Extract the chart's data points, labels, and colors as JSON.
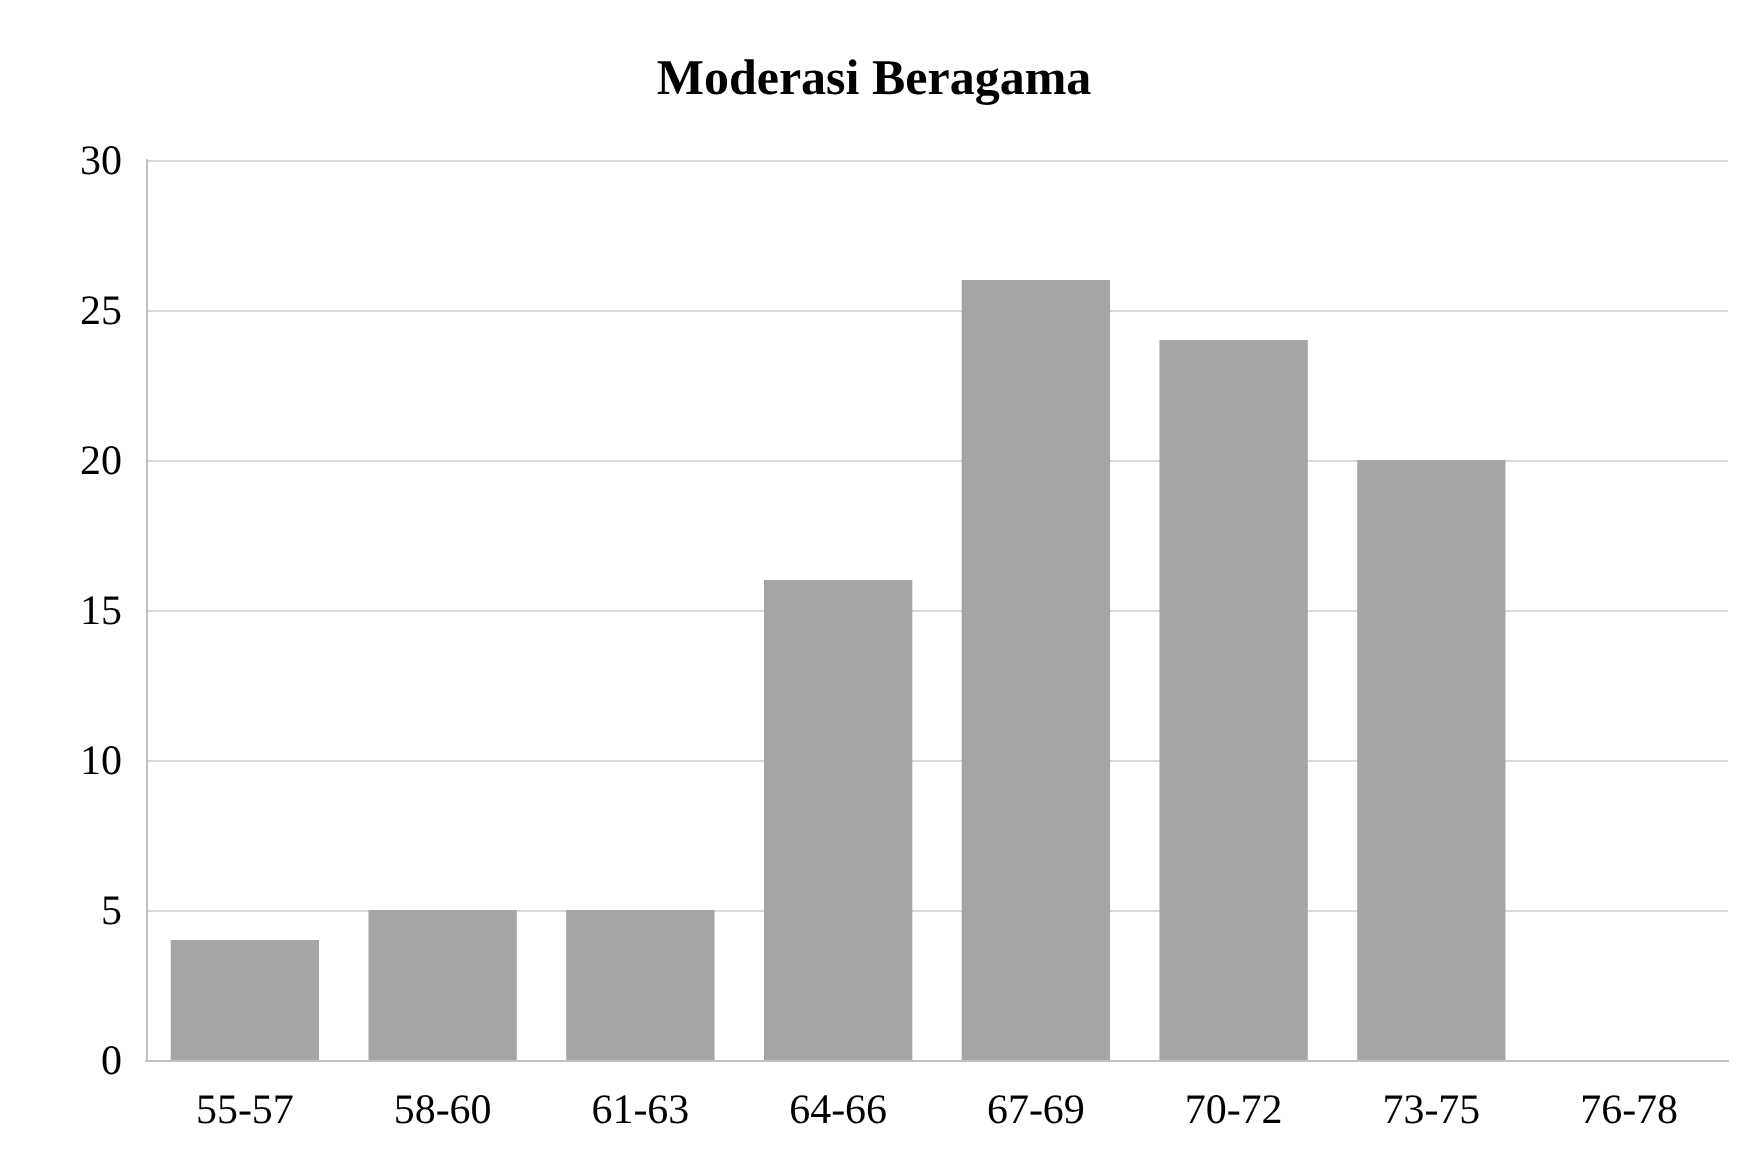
{
  "chart_data": {
    "type": "bar",
    "title": "Moderasi Beragama",
    "categories": [
      "55-57",
      "58-60",
      "61-63",
      "64-66",
      "67-69",
      "70-72",
      "73-75",
      "76-78"
    ],
    "values": [
      4,
      5,
      5,
      16,
      26,
      24,
      20,
      0
    ],
    "color": "#a5a5a5",
    "ylim": [
      0,
      30
    ],
    "yticks": [
      0,
      5,
      10,
      15,
      20,
      25,
      30
    ],
    "grid": "y"
  }
}
